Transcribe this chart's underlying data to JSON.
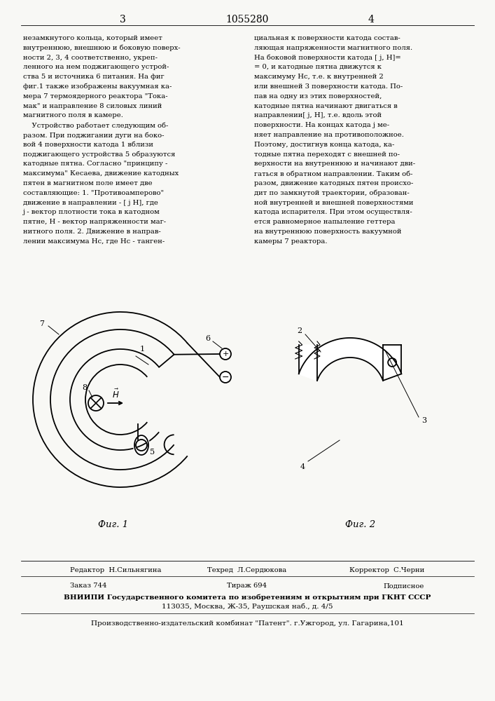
{
  "title_center": "1055280",
  "page_left": "3",
  "page_right": "4",
  "background_color": "#f8f8f5",
  "text_color": "#000000",
  "left_column_text": [
    "незамкнутого кольца, который имеет",
    "внутреннюю, внешнюю и боковую поверх-",
    "ности 2, 3, 4 соответственно, укреп-",
    "ленного на нем поджигающего устрой-",
    "ства 5 и источника 6 питания. На фиг",
    "фиг.1 также изображены вакуумная ка-",
    "мера 7 термоядерного реактора \"Тока-",
    "мак\" и направление 8 силовых линий",
    "магнитного поля в камере.",
    "    Устройство работает следующим об-",
    "разом. При поджигании дуги на боко-",
    "вой 4 поверхности катода 1 вблизи",
    "поджигающего устройства 5 образуются",
    "катодные пятна. Согласно \"принципу -",
    "максимума\" Кесаева, движение катодных",
    "пятен в магнитном поле имеет две",
    "составляющие: 1. \"Противоамперово\"",
    "движение в направлении - [ j H], где",
    "j - вектор плотности тока в катодном",
    "пятне, H - вектор напряженности маг-",
    "нитного поля. 2. Движение в направ-",
    "лении максимума Hc, где Hc - танген-"
  ],
  "right_column_text": [
    "циальная к поверхности катода состав-",
    "ляющая напряженности магнитного поля.",
    "На боковой поверхности катода [ j, H]=",
    "= 0, и катодные пятна движутся к",
    "максимуму Hc, т.е. к внутренней 2",
    "или внешней 3 поверхности катода. По-",
    "пав на одну из этих поверхностей,",
    "катодные пятна начинают двигаться в",
    "направлении[ j, H], т.е. вдоль этой",
    "поверхности. На концах катода j ме-",
    "няет направление на противоположное.",
    "Поэтому, достигнув конца катода, ка-",
    "тодные пятна переходят с внешней по-",
    "верхности на внутреннюю и начинают дви-",
    "гаться в обратном направлении. Таким об-",
    "разом, движение катодных пятен происхо-",
    "дит по замкнутой траектории, образован-",
    "ной внутренней и внешней поверхностями",
    "катода испарителя. При этом осуществля-",
    "ется равномерное напыление геттера",
    "на внутреннюю поверхность вакуумной",
    "камеры 7 реактора."
  ],
  "fig1_caption": "Фиг. 1",
  "fig2_caption": "Фиг. 2",
  "footer_line1_left": "Редактор  Н.Сильнягина",
  "footer_line1_mid": "Техред  Л.Сердюкова",
  "footer_line1_right": "Корректор  С.Черни",
  "footer_line2_left": "Заказ 744",
  "footer_line2_mid": "Тираж 694",
  "footer_line2_right": "Подписное",
  "footer_line3": "ВНИИПИ Государственного комитета по изобретениям и открытиям при ГКНТ СССР",
  "footer_line4": "113035, Москва, Ж-35, Раушская наб., д. 4/5",
  "footer_line5": "Производственно-издательский комбинат \"Патент\". г.Ужгород, ул. Гагарина,101"
}
